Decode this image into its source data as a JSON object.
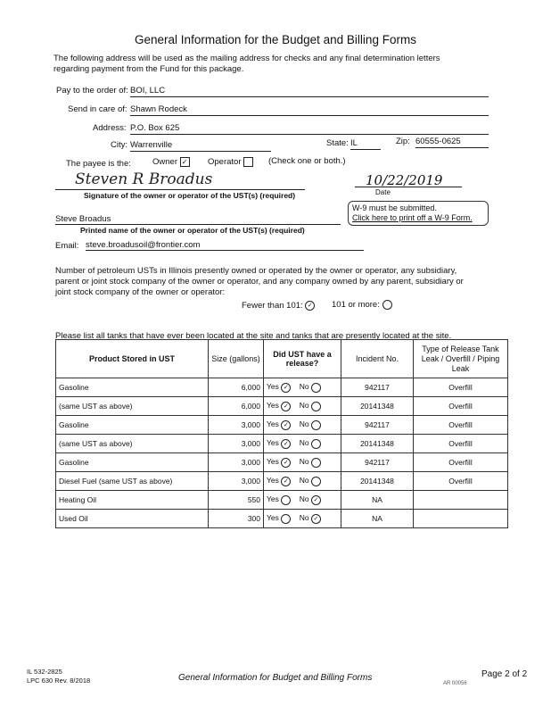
{
  "title": "General Information for the Budget and Billing Forms",
  "intro": [
    "The following address will be used as the mailing address for checks and any final determination letters",
    "regarding payment from the Fund for this package."
  ],
  "address": {
    "pay_label": "Pay to the order of:",
    "pay": "BOI, LLC",
    "care_label": "Send in care of:",
    "care": "Shawn Rodeck",
    "address_label": "Address:",
    "address": "P.O. Box 625",
    "city_label": "City:",
    "city": "Warrenville",
    "state_label": "State:",
    "state": "IL",
    "zip_label": "Zip:",
    "zip": "60555-0625"
  },
  "payee": {
    "label": "The payee is the:",
    "owner": "Owner",
    "owner_checked": true,
    "operator": "Operator",
    "operator_checked": false,
    "note": "(Check one or both.)"
  },
  "signature": {
    "sig": "Steven R Broadus",
    "label": "Signature of the owner or operator of the UST(s) (required)",
    "date": "10/22/2019",
    "date_label": "Date"
  },
  "w9": {
    "line1": "W-9 must be submitted.",
    "link": "Click here to print off a W-9 Form."
  },
  "printed": {
    "name": "Steve Broadus",
    "label": "Printed name of the owner or operator of the UST(s) (required)"
  },
  "email": {
    "label": "Email:",
    "value": "steve.broadusoil@frontier.com"
  },
  "count": {
    "text": [
      "Number of petroleum USTs in Illinois presently owned or operated by the owner or operator, any subsidiary,",
      "parent or joint stock company of the owner or operator, and any company owned by any parent, subsidiary or",
      "joint stock company of the owner or operator:"
    ],
    "fewer": "Fewer than 101:",
    "fewer_checked": true,
    "more": "101 or more:",
    "more_checked": false
  },
  "tanks": {
    "intro": "Please list all tanks that have ever been located at the site and tanks that are presently located at the site.",
    "headers": [
      "Product Stored in UST",
      "Size (gallons)",
      "Did UST have a release?",
      "Incident No.",
      "Type of Release Tank Leak / Overfill / Piping Leak"
    ],
    "yes": "Yes",
    "no": "No",
    "rows": [
      {
        "product": "Gasoline",
        "size": "6,000",
        "release": true,
        "incident": "942117",
        "type": "Overfill"
      },
      {
        "product": "(same UST as above)",
        "size": "6,000",
        "release": true,
        "incident": "20141348",
        "type": "Overfill"
      },
      {
        "product": "Gasoline",
        "size": "3,000",
        "release": true,
        "incident": "942117",
        "type": "Overfill"
      },
      {
        "product": "(same UST as above)",
        "size": "3,000",
        "release": true,
        "incident": "20141348",
        "type": "Overfill"
      },
      {
        "product": "Gasoline",
        "size": "3,000",
        "release": true,
        "incident": "942117",
        "type": "Overfill"
      },
      {
        "product": "Diesel Fuel (same UST as above)",
        "size": "3,000",
        "release": true,
        "incident": "20141348",
        "type": "Overfill"
      },
      {
        "product": "Heating Oil",
        "size": "550",
        "release": false,
        "incident": "NA",
        "type": ""
      },
      {
        "product": "Used Oil",
        "size": "300",
        "release": false,
        "incident": "NA",
        "type": ""
      }
    ]
  },
  "footer": {
    "code1": "IL 532-2825",
    "code2": "LPC 630 Rev. 8/2018",
    "title": "General Information for Budget and Billing Forms",
    "page": "Page 2 of 2",
    "stamp": "AR 00056"
  }
}
